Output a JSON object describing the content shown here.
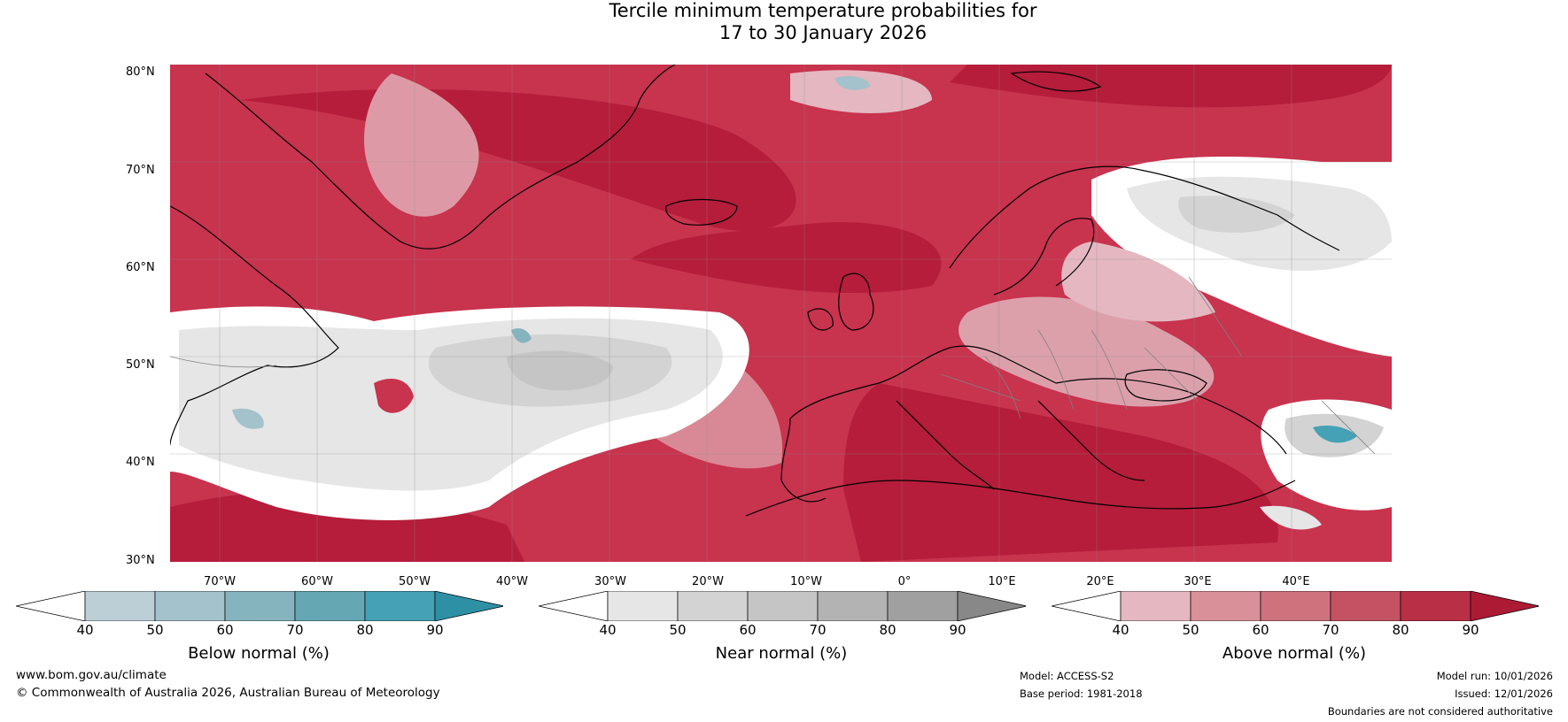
{
  "title_line1": "Tercile minimum temperature probabilities for",
  "title_line2": "17 to 30 January 2026",
  "lat_labels": [
    "80°N",
    "70°N",
    "60°N",
    "50°N",
    "40°N",
    "30°N"
  ],
  "lon_labels": [
    "70°W",
    "60°W",
    "50°W",
    "40°W",
    "30°W",
    "20°W",
    "10°W",
    "0°",
    "10°E",
    "20°E",
    "30°E",
    "40°E"
  ],
  "legends": [
    {
      "label": "Below normal (%)",
      "ticks": [
        "40",
        "50",
        "60",
        "70",
        "80",
        "90"
      ],
      "colors": [
        "#ffffff",
        "#bccfd7",
        "#a4c2cb",
        "#86b4be",
        "#66a7b4",
        "#45a1b5",
        "#2e90a5"
      ]
    },
    {
      "label": "Near normal (%)",
      "ticks": [
        "40",
        "50",
        "60",
        "70",
        "80",
        "90"
      ],
      "colors": [
        "#ffffff",
        "#e6e6e6",
        "#d3d3d3",
        "#c5c5c5",
        "#b3b3b3",
        "#a0a0a0",
        "#888888"
      ]
    },
    {
      "label": "Above normal (%)",
      "ticks": [
        "40",
        "50",
        "60",
        "70",
        "80",
        "90"
      ],
      "colors": [
        "#ffffff",
        "#e5b8c1",
        "#d99099",
        "#cf727e",
        "#c45262",
        "#b93046",
        "#ad1a34"
      ]
    }
  ],
  "footer": {
    "website": "www.bom.gov.au/climate",
    "copyright": "© Commonwealth of Australia 2026, Australian Bureau of Meteorology",
    "model": "Model: ACCESS-S2",
    "base_period": "Base period: 1981-2018",
    "model_run": "Model run: 10/01/2026",
    "issued": "Issued: 12/01/2026",
    "disclaimer": "Boundaries are not considered authoritative"
  }
}
